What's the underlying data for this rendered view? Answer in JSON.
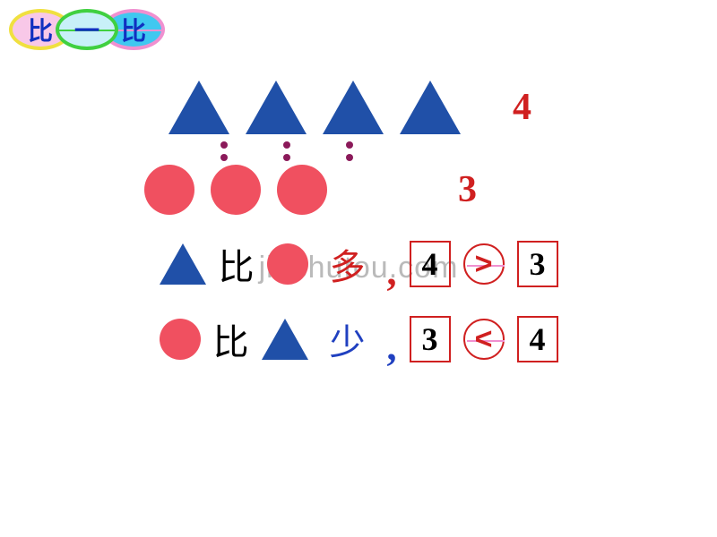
{
  "header": {
    "char1": "比",
    "char2": "一",
    "char3": "比"
  },
  "watermark": "jinchutou.com",
  "colors": {
    "triangle": "#2050a8",
    "circle": "#f05060",
    "box_border": "#d02020",
    "red_text": "#d02020",
    "blue_text": "#2040c0"
  },
  "comparison": {
    "triangles_count": 4,
    "circles_count": 3,
    "triangles_label": "4",
    "circles_label": "3"
  },
  "line1": {
    "word_bi": "比",
    "word_rel": "多",
    "n1": "4",
    "op": ">",
    "n2": "3"
  },
  "line2": {
    "word_bi": "比",
    "word_rel": "少",
    "n1": "3",
    "op": "<",
    "n2": "4"
  }
}
